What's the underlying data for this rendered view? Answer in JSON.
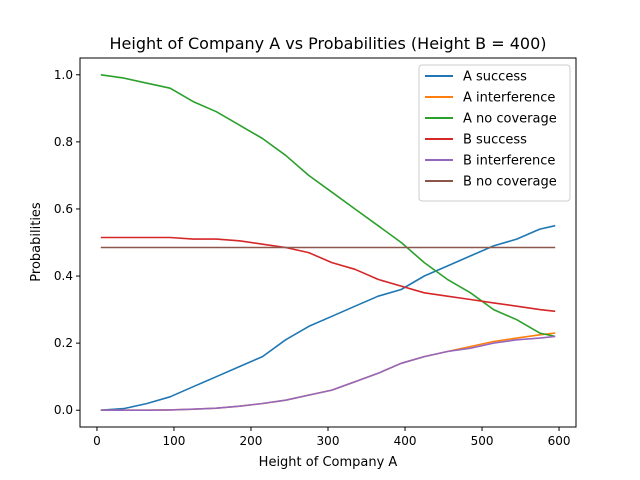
{
  "chart_data": {
    "type": "line",
    "title": "Height of Company A vs Probabilities (Height B = 400)",
    "xlabel": "Height of Company A",
    "ylabel": "Probabilities",
    "xlim": [
      -22,
      622
    ],
    "ylim": [
      -0.05,
      1.05
    ],
    "xticks": [
      0,
      100,
      200,
      300,
      400,
      500,
      600
    ],
    "yticks": [
      0.0,
      0.2,
      0.4,
      0.6,
      0.8,
      1.0
    ],
    "ytick_labels": [
      "0.0",
      "0.2",
      "0.4",
      "0.6",
      "0.8",
      "1.0"
    ],
    "legend_position": "upper right",
    "grid": false,
    "x": [
      5,
      35,
      65,
      95,
      125,
      155,
      185,
      215,
      245,
      275,
      305,
      335,
      365,
      395,
      425,
      455,
      485,
      515,
      545,
      575,
      595
    ],
    "series": [
      {
        "name": "A success",
        "color": "#1f77b4",
        "values": [
          0.0,
          0.005,
          0.02,
          0.04,
          0.07,
          0.1,
          0.13,
          0.16,
          0.21,
          0.25,
          0.28,
          0.31,
          0.34,
          0.36,
          0.4,
          0.43,
          0.46,
          0.49,
          0.51,
          0.54,
          0.55
        ]
      },
      {
        "name": "A interference",
        "color": "#ff7f0e",
        "values": [
          0.0,
          0.0,
          0.0,
          0.001,
          0.003,
          0.006,
          0.012,
          0.02,
          0.03,
          0.045,
          0.06,
          0.085,
          0.11,
          0.14,
          0.16,
          0.175,
          0.19,
          0.205,
          0.215,
          0.225,
          0.23
        ]
      },
      {
        "name": "A no coverage",
        "color": "#2ca02c",
        "values": [
          1.0,
          0.99,
          0.975,
          0.96,
          0.92,
          0.89,
          0.85,
          0.81,
          0.76,
          0.7,
          0.65,
          0.6,
          0.55,
          0.5,
          0.44,
          0.39,
          0.35,
          0.3,
          0.27,
          0.23,
          0.22
        ]
      },
      {
        "name": "B success",
        "color": "#d62728",
        "values": [
          0.515,
          0.515,
          0.515,
          0.515,
          0.51,
          0.51,
          0.505,
          0.495,
          0.485,
          0.47,
          0.44,
          0.42,
          0.39,
          0.37,
          0.35,
          0.34,
          0.33,
          0.32,
          0.31,
          0.3,
          0.295
        ]
      },
      {
        "name": "B interference",
        "color": "#9467bd",
        "values": [
          0.0,
          0.0,
          0.0,
          0.001,
          0.003,
          0.006,
          0.012,
          0.02,
          0.03,
          0.045,
          0.06,
          0.085,
          0.11,
          0.14,
          0.16,
          0.175,
          0.185,
          0.2,
          0.21,
          0.215,
          0.22
        ]
      },
      {
        "name": "B no coverage",
        "color": "#8c564b",
        "values": [
          0.485,
          0.485,
          0.485,
          0.485,
          0.485,
          0.485,
          0.485,
          0.485,
          0.485,
          0.485,
          0.485,
          0.485,
          0.485,
          0.485,
          0.485,
          0.485,
          0.485,
          0.485,
          0.485,
          0.485,
          0.485
        ]
      }
    ]
  }
}
